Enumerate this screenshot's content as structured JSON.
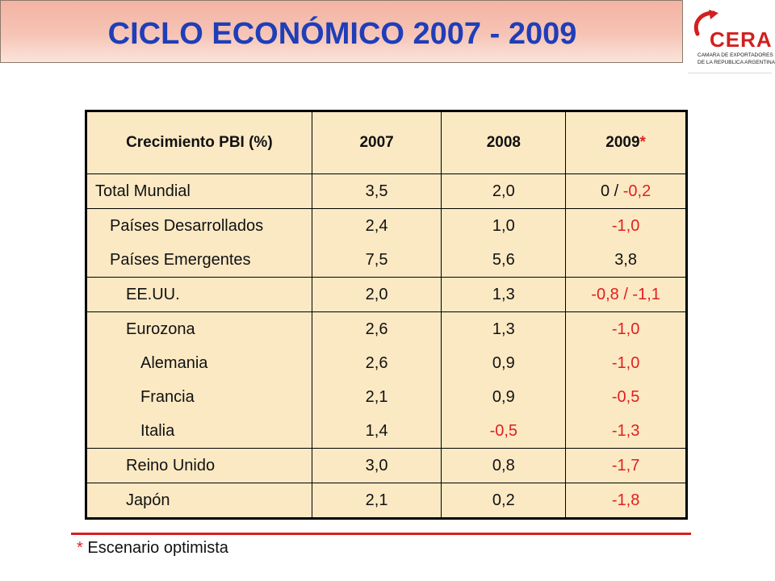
{
  "title": "CICLO ECONÓMICO 2007 - 2009",
  "logo": {
    "word": "CERA",
    "line1": "CAMARA DE EXPORTADORES",
    "line2": "DE LA REPUBLICA ARGENTINA"
  },
  "table": {
    "header": {
      "label": "Crecimiento PBI (%)",
      "y2007": "2007",
      "y2008": "2008",
      "y2009": "2009",
      "y2009_mark": "*"
    },
    "rows": [
      {
        "label": "Total Mundial",
        "v2007": "3,5",
        "v2008": "2,0",
        "v2009a": "0 / ",
        "v2009b": "-0,2"
      },
      {
        "label": "Países Desarrollados",
        "v2007": "2,4",
        "v2008": "1,0",
        "v2009": "-1,0"
      },
      {
        "label": "Países Emergentes",
        "v2007": "7,5",
        "v2008": "5,6",
        "v2009": "3,8"
      },
      {
        "label": "EE.UU.",
        "v2007": "2,0",
        "v2008": "1,3",
        "v2009": "-0,8 / -1,1"
      },
      {
        "label": "Eurozona",
        "v2007": "2,6",
        "v2008": "1,3",
        "v2009": "-1,0"
      },
      {
        "label": "Alemania",
        "v2007": "2,6",
        "v2008": "0,9",
        "v2009": "-1,0"
      },
      {
        "label": "Francia",
        "v2007": "2,1",
        "v2008": "0,9",
        "v2009": "-0,5"
      },
      {
        "label": "Italia",
        "v2007": "1,4",
        "v2008": "-0,5",
        "v2009": "-1,3"
      },
      {
        "label": "Reino Unido",
        "v2007": "3,0",
        "v2008": "0,8",
        "v2009": "-1,7"
      },
      {
        "label": "Japón",
        "v2007": "2,1",
        "v2008": "0,2",
        "v2009": "-1,8"
      }
    ]
  },
  "footnote": {
    "mark": "*",
    "text": " Escenario optimista"
  },
  "colors": {
    "title": "#1f3eb8",
    "negative": "#e02020",
    "table_bg": "#fbe9c4",
    "banner": "#f3b3a3"
  }
}
